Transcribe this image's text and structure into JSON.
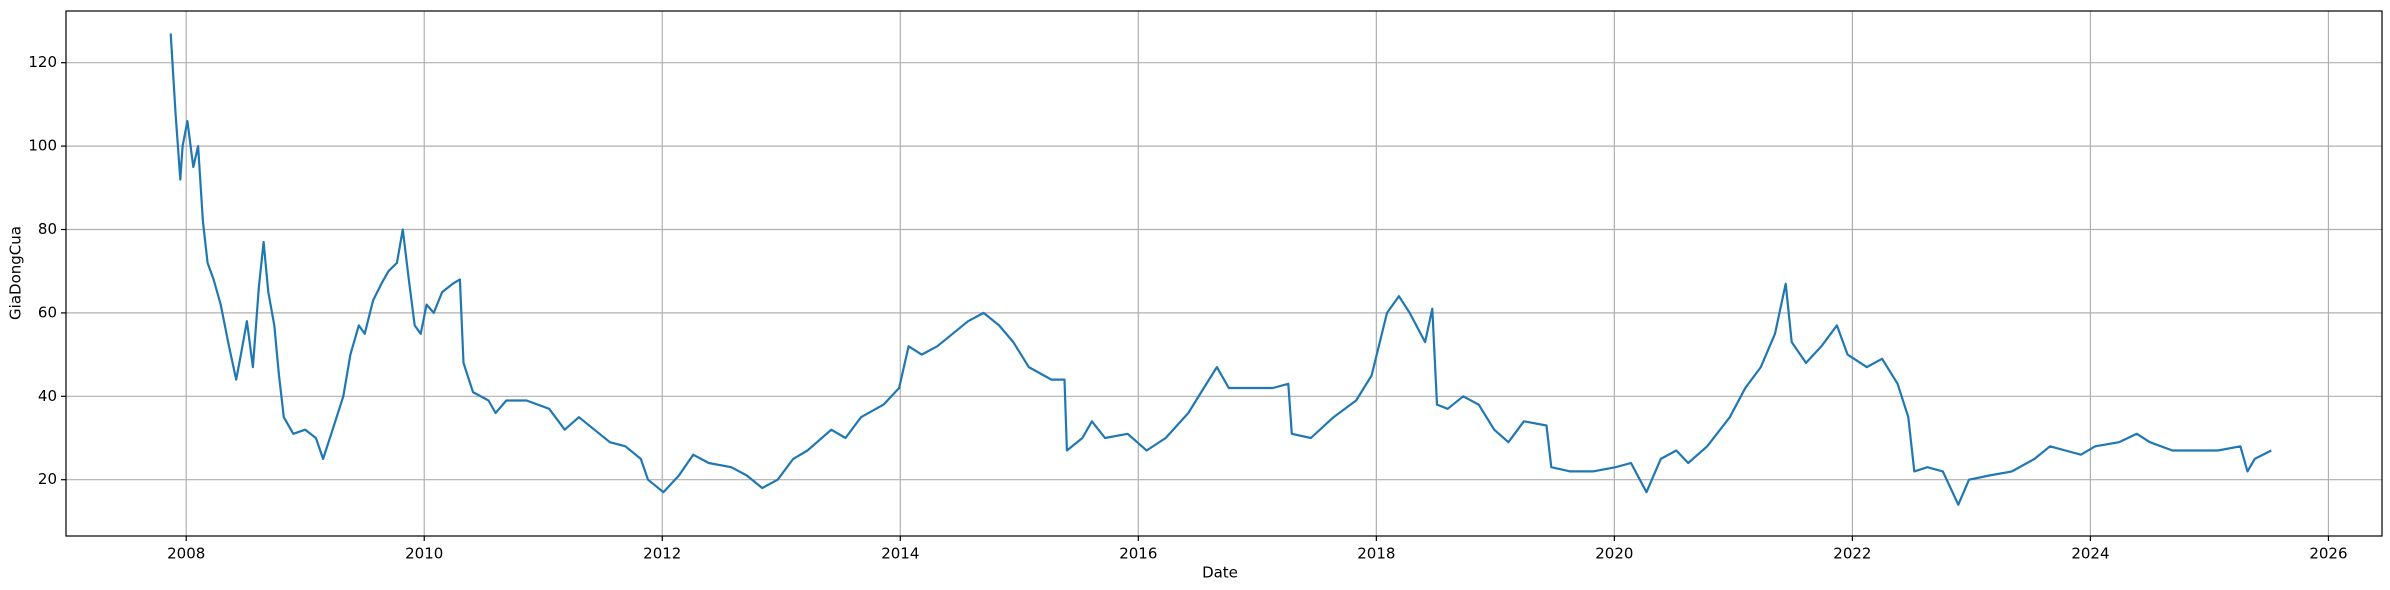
{
  "chart_data": {
    "type": "line",
    "xlabel": "Date",
    "ylabel": "GiaDongCua",
    "color": "#1f77b4",
    "grid": true,
    "x": [
      2007.87,
      2007.91,
      2007.95,
      2007.97,
      2008.01,
      2008.06,
      2008.1,
      2008.14,
      2008.18,
      2008.23,
      2008.29,
      2008.36,
      2008.42,
      2008.46,
      2008.51,
      2008.56,
      2008.61,
      2008.65,
      2008.69,
      2008.74,
      2008.78,
      2008.82,
      2008.9,
      2009.0,
      2009.09,
      2009.15,
      2009.23,
      2009.32,
      2009.38,
      2009.45,
      2009.5,
      2009.57,
      2009.64,
      2009.7,
      2009.77,
      2009.82,
      2009.87,
      2009.92,
      2009.97,
      2010.02,
      2010.08,
      2010.15,
      2010.24,
      2010.3,
      2010.33,
      2010.41,
      2010.54,
      2010.6,
      2010.69,
      2010.86,
      2011.05,
      2011.18,
      2011.3,
      2011.43,
      2011.56,
      2011.69,
      2011.82,
      2011.88,
      2012.01,
      2012.14,
      2012.26,
      2012.39,
      2012.58,
      2012.71,
      2012.84,
      2012.97,
      2013.1,
      2013.22,
      2013.42,
      2013.54,
      2013.67,
      2013.86,
      2013.99,
      2014.07,
      2014.18,
      2014.31,
      2014.44,
      2014.57,
      2014.7,
      2014.83,
      2014.95,
      2015.08,
      2015.27,
      2015.38,
      2015.4,
      2015.53,
      2015.61,
      2015.72,
      2015.91,
      2016.07,
      2016.23,
      2016.42,
      2016.55,
      2016.66,
      2016.76,
      2016.94,
      2017.13,
      2017.26,
      2017.29,
      2017.45,
      2017.64,
      2017.83,
      2017.96,
      2018.09,
      2018.19,
      2018.28,
      2018.41,
      2018.47,
      2018.51,
      2018.6,
      2018.73,
      2018.86,
      2018.99,
      2019.11,
      2019.24,
      2019.43,
      2019.47,
      2019.63,
      2019.82,
      2020.01,
      2020.14,
      2020.27,
      2020.39,
      2020.52,
      2020.62,
      2020.78,
      2020.97,
      2021.1,
      2021.23,
      2021.35,
      2021.44,
      2021.49,
      2021.61,
      2021.74,
      2021.87,
      2021.96,
      2022.12,
      2022.25,
      2022.38,
      2022.47,
      2022.52,
      2022.63,
      2022.76,
      2022.89,
      2022.98,
      2023.15,
      2023.34,
      2023.53,
      2023.66,
      2023.79,
      2023.92,
      2024.04,
      2024.24,
      2024.39,
      2024.5,
      2024.69,
      2024.88,
      2025.07,
      2025.26,
      2025.32,
      2025.38,
      2025.52
    ],
    "values": [
      127,
      108,
      92,
      100,
      106,
      95,
      100,
      82,
      72,
      68,
      62,
      52,
      44,
      50,
      58,
      47,
      66,
      77,
      65,
      57,
      45,
      35,
      31,
      32,
      30,
      25,
      32,
      40,
      50,
      57,
      55,
      63,
      67,
      70,
      72,
      80,
      68,
      57,
      55,
      62,
      60,
      65,
      67,
      68,
      48,
      41,
      39,
      36,
      39,
      39,
      37,
      32,
      35,
      32,
      29,
      28,
      25,
      20,
      17,
      21,
      26,
      24,
      23,
      21,
      18,
      20,
      25,
      27,
      32,
      30,
      35,
      38,
      42,
      52,
      50,
      52,
      55,
      58,
      60,
      57,
      53,
      47,
      44,
      44,
      27,
      30,
      34,
      30,
      31,
      27,
      30,
      36,
      42,
      47,
      42,
      42,
      42,
      43,
      31,
      30,
      35,
      39,
      45,
      60,
      64,
      60,
      53,
      61,
      38,
      37,
      40,
      38,
      32,
      29,
      34,
      33,
      23,
      22,
      22,
      23,
      24,
      17,
      25,
      27,
      24,
      28,
      35,
      42,
      47,
      55,
      67,
      53,
      48,
      52,
      57,
      50,
      47,
      49,
      43,
      35,
      22,
      23,
      22,
      14,
      20,
      21,
      22,
      25,
      28,
      27,
      26,
      28,
      29,
      31,
      29,
      27,
      27,
      27,
      28,
      22,
      25,
      27
    ],
    "xlim": [
      2006.99,
      2026.45
    ],
    "xticks": [
      2008,
      2010,
      2012,
      2014,
      2016,
      2018,
      2020,
      2022,
      2024,
      2026
    ],
    "ylim": [
      6.5,
      132.4
    ],
    "yticks": [
      20,
      40,
      60,
      80,
      100,
      120
    ]
  }
}
